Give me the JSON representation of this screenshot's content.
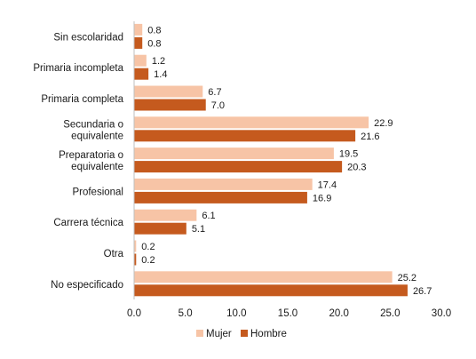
{
  "chart_data": {
    "type": "bar",
    "orientation": "horizontal",
    "categories": [
      [
        "Sin escolaridad"
      ],
      [
        "Primaria incompleta"
      ],
      [
        "Primaria completa"
      ],
      [
        "Secundaria o",
        "equivalente"
      ],
      [
        "Preparatoria o",
        "equivalente"
      ],
      [
        "Profesional"
      ],
      [
        "Carrera técnica"
      ],
      [
        "Otra"
      ],
      [
        "No especificado"
      ]
    ],
    "series": [
      {
        "name": "Mujer",
        "color": "#f7c4a6",
        "values": [
          0.8,
          1.2,
          6.7,
          22.9,
          19.5,
          17.4,
          6.1,
          0.2,
          25.2
        ],
        "labels": [
          "0.8",
          "1.2",
          "6.7",
          "22.9",
          "19.5",
          "17.4",
          "6.1",
          "0.2",
          "25.2"
        ]
      },
      {
        "name": "Hombre",
        "color": "#c55a1e",
        "values": [
          0.8,
          1.4,
          7.0,
          21.6,
          20.3,
          16.9,
          5.1,
          0.2,
          26.7
        ],
        "labels": [
          "0.8",
          "1.4",
          "7.0",
          "21.6",
          "20.3",
          "16.9",
          "5.1",
          "0.2",
          "26.7"
        ]
      }
    ],
    "xlim": [
      0,
      30
    ],
    "xticks": [
      "0.0",
      "5.0",
      "10.0",
      "15.0",
      "20.0",
      "25.0",
      "30.0"
    ],
    "grid": false,
    "legend_position": "bottom"
  }
}
